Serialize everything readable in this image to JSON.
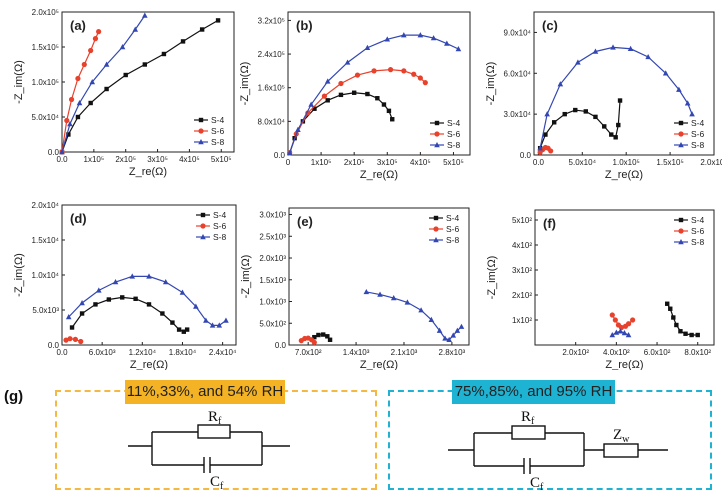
{
  "figure": {
    "colors": {
      "S-4": "#111111",
      "S-6": "#e8412c",
      "S-8": "#3347b3"
    },
    "markers": {
      "S-4": "square",
      "S-6": "circle",
      "S-8": "triangle"
    }
  },
  "chart_data": [
    {
      "panel": "(a)",
      "type": "scatter",
      "xlabel": "Z_re(Ω)",
      "ylabel": "-Z_im(Ω)",
      "xlim": [
        0,
        540000.0
      ],
      "ylim": [
        0,
        200000.0
      ],
      "xticks": [
        0,
        100000,
        200000,
        300000,
        400000,
        500000
      ],
      "xtick_labels": [
        "0.0",
        "1x10⁵",
        "2x10⁵",
        "3x10⁵",
        "4x10⁵",
        "5x10⁵"
      ],
      "yticks": [
        0,
        50000,
        100000,
        150000,
        200000
      ],
      "ytick_labels": [
        "0.0",
        "5.0x10⁴",
        "1.0x10⁵",
        "1.5x10⁵",
        "2.0x10⁵"
      ],
      "legend": [
        "S-4",
        "S-6",
        "S-8"
      ],
      "series": [
        {
          "name": "S-4",
          "x": [
            0,
            20000,
            50000,
            90000,
            140000,
            200000,
            260000,
            320000,
            380000,
            440000,
            490000
          ],
          "y": [
            0,
            25000,
            50000,
            70000,
            90000,
            110000,
            125000,
            140000,
            158000,
            175000,
            188000
          ]
        },
        {
          "name": "S-6",
          "x": [
            0,
            15000,
            30000,
            50000,
            70000,
            90000,
            105000,
            115000
          ],
          "y": [
            0,
            45000,
            75000,
            105000,
            125000,
            145000,
            162000,
            172000
          ]
        },
        {
          "name": "S-8",
          "x": [
            0,
            25000,
            55000,
            95000,
            140000,
            190000,
            230000,
            260000
          ],
          "y": [
            0,
            40000,
            70000,
            100000,
            125000,
            150000,
            175000,
            195000
          ]
        }
      ]
    },
    {
      "panel": "(b)",
      "type": "scatter",
      "xlabel": "Z_re(Ω)",
      "ylabel": "-Z_im(Ω)",
      "xlim": [
        0,
        550000.0
      ],
      "ylim": [
        0,
        340000.0
      ],
      "xticks": [
        0,
        100000,
        200000,
        300000,
        400000,
        500000
      ],
      "xtick_labels": [
        "0",
        "1x10⁵",
        "2x10⁵",
        "3x10⁵",
        "4x10⁵",
        "5x10⁵"
      ],
      "yticks": [
        0,
        80000,
        160000,
        240000,
        320000
      ],
      "ytick_labels": [
        "0.0",
        "8.0x10⁴",
        "1.6x10⁵",
        "2.4x10⁵",
        "3.2x10⁵"
      ],
      "legend": [
        "S-4",
        "S-6",
        "S-8"
      ],
      "series": [
        {
          "name": "S-4",
          "x": [
            5000,
            20000,
            45000,
            80000,
            120000,
            160000,
            200000,
            240000,
            270000,
            290000,
            305000,
            315000
          ],
          "y": [
            5000,
            40000,
            80000,
            110000,
            130000,
            143000,
            148000,
            145000,
            135000,
            120000,
            105000,
            85000
          ]
        },
        {
          "name": "S-6",
          "x": [
            5000,
            25000,
            60000,
            110000,
            160000,
            210000,
            260000,
            310000,
            350000,
            380000,
            400000,
            415000
          ],
          "y": [
            5000,
            50000,
            100000,
            140000,
            170000,
            190000,
            200000,
            203000,
            200000,
            192000,
            183000,
            172000
          ]
        },
        {
          "name": "S-8",
          "x": [
            5000,
            30000,
            70000,
            120000,
            180000,
            240000,
            300000,
            350000,
            400000,
            440000,
            480000,
            515000
          ],
          "y": [
            5000,
            60000,
            120000,
            175000,
            220000,
            255000,
            275000,
            285000,
            285000,
            278000,
            265000,
            252000
          ]
        }
      ]
    },
    {
      "panel": "(c)",
      "type": "scatter",
      "xlabel": "Z_re(Ω)",
      "ylabel": "-Z_im(Ω)",
      "xlim": [
        -5000,
        200000.0
      ],
      "ylim": [
        0,
        105000.0
      ],
      "xticks": [
        0,
        50000,
        100000,
        150000,
        200000
      ],
      "xtick_labels": [
        "0.0",
        "5.0x10⁴",
        "1.0x10⁵",
        "1.5x10⁵",
        "2.0x10⁵"
      ],
      "yticks": [
        0,
        30000,
        60000,
        90000
      ],
      "ytick_labels": [
        "0.0",
        "3.0x10⁴",
        "6.0x10⁴",
        "9.0x10⁴"
      ],
      "legend": [
        "S-4",
        "S-6",
        "S-8"
      ],
      "series": [
        {
          "name": "S-4",
          "x": [
            2000,
            8000,
            18000,
            30000,
            42000,
            54000,
            65000,
            75000,
            83000,
            88000,
            91000,
            93000
          ],
          "y": [
            5000,
            15000,
            24000,
            30000,
            33000,
            32000,
            28000,
            21000,
            15000,
            13000,
            22000,
            40000
          ]
        },
        {
          "name": "S-6",
          "x": [
            2000,
            5000,
            8000,
            11000,
            14000
          ],
          "y": [
            2000,
            4000,
            5500,
            5000,
            3000
          ]
        },
        {
          "name": "S-8",
          "x": [
            2000,
            10000,
            25000,
            45000,
            65000,
            85000,
            105000,
            125000,
            145000,
            160000,
            170000,
            175000
          ],
          "y": [
            5000,
            30000,
            52000,
            68000,
            76000,
            79000,
            78000,
            72000,
            60000,
            48000,
            38000,
            30000
          ]
        }
      ]
    },
    {
      "panel": "(d)",
      "type": "scatter",
      "xlabel": "Z_re(Ω)",
      "ylabel": "-Z_im(Ω)",
      "xlim": [
        0,
        26000
      ],
      "ylim": [
        0,
        20000
      ],
      "xticks": [
        0,
        6000,
        12000,
        18000,
        24000
      ],
      "xtick_labels": [
        "0.0",
        "6.0x10³",
        "1.2x10⁴",
        "1.8x10⁴",
        "2.4x10⁴"
      ],
      "yticks": [
        0,
        5000,
        10000,
        15000,
        20000
      ],
      "ytick_labels": [
        "0.0",
        "5.0x10³",
        "1.0x10⁴",
        "1.5x10⁴",
        "2.0x10⁴"
      ],
      "legend": [
        "S-4",
        "S-6",
        "S-8"
      ],
      "series": [
        {
          "name": "S-4",
          "x": [
            1500,
            3000,
            5000,
            7000,
            9000,
            11000,
            13000,
            15000,
            16500,
            17500,
            18200,
            18700
          ],
          "y": [
            2500,
            4500,
            5800,
            6500,
            6800,
            6600,
            5800,
            4500,
            3200,
            2200,
            1900,
            2200
          ]
        },
        {
          "name": "S-6",
          "x": [
            600,
            1200,
            2000,
            2800
          ],
          "y": [
            700,
            900,
            800,
            500
          ]
        },
        {
          "name": "S-8",
          "x": [
            1000,
            3000,
            5500,
            8000,
            10500,
            13000,
            15500,
            18000,
            20000,
            21500,
            22500,
            23500,
            24500
          ],
          "y": [
            4000,
            6000,
            7800,
            9000,
            9800,
            9800,
            9000,
            7500,
            5500,
            3500,
            2800,
            2800,
            3500
          ]
        }
      ]
    },
    {
      "panel": "(e)",
      "type": "scatter",
      "xlabel": "Z_re(Ω)",
      "ylabel": "-Z_im(Ω)",
      "xlim": [
        420,
        3050
      ],
      "ylim": [
        0,
        3150
      ],
      "xticks": [
        700,
        1400,
        2100,
        2800
      ],
      "xtick_labels": [
        "7.0x10²",
        "1.4x10³",
        "2.1x10³",
        "2.8x10³"
      ],
      "yticks": [
        0,
        500,
        1000,
        1500,
        2000,
        2500,
        3000
      ],
      "ytick_labels": [
        "0.0",
        "5.0x10²",
        "1.0x10³",
        "1.5x10³",
        "2.0x10³",
        "2.5x10³",
        "3.0x10³"
      ],
      "legend": [
        "S-4",
        "S-6",
        "S-8"
      ],
      "series": [
        {
          "name": "S-4",
          "x": [
            790,
            850,
            920,
            980,
            1020
          ],
          "y": [
            180,
            230,
            240,
            200,
            120
          ]
        },
        {
          "name": "S-6",
          "x": [
            600,
            650,
            700,
            750,
            790
          ],
          "y": [
            100,
            150,
            160,
            120,
            60
          ]
        },
        {
          "name": "S-8",
          "x": [
            1550,
            1750,
            1950,
            2150,
            2350,
            2500,
            2620,
            2700,
            2760,
            2820,
            2880,
            2940
          ],
          "y": [
            1220,
            1160,
            1080,
            980,
            800,
            580,
            330,
            150,
            120,
            220,
            330,
            420
          ]
        }
      ]
    },
    {
      "panel": "(f)",
      "type": "scatter",
      "xlabel": "Z_re(Ω)",
      "ylabel": "-Z_im(Ω)",
      "xlim": [
        0,
        880
      ],
      "ylim": [
        0,
        540
      ],
      "xticks": [
        200,
        400,
        600,
        800
      ],
      "xtick_labels": [
        "2.0x10²",
        "4.0x10²",
        "6.0x10²",
        "8.0x10²"
      ],
      "yticks": [
        100,
        200,
        300,
        400,
        500
      ],
      "ytick_labels": [
        "1x10²",
        "2x10²",
        "3x10²",
        "4x10²",
        "5x10²"
      ],
      "legend": [
        "S-4",
        "S-6",
        "S-8"
      ],
      "series": [
        {
          "name": "S-4",
          "x": [
            650,
            665,
            680,
            695,
            715,
            740,
            770,
            800
          ],
          "y": [
            165,
            145,
            110,
            80,
            55,
            45,
            40,
            40
          ]
        },
        {
          "name": "S-6",
          "x": [
            380,
            395,
            410,
            425,
            445,
            460,
            480
          ],
          "y": [
            120,
            100,
            80,
            70,
            75,
            85,
            100
          ]
        },
        {
          "name": "S-8",
          "x": [
            380,
            400,
            420,
            440,
            460
          ],
          "y": [
            40,
            50,
            55,
            48,
            40
          ]
        }
      ]
    }
  ],
  "circuits": {
    "label": "(g)",
    "left": {
      "title": "11%,33%, and 54% RH",
      "resistor": "R",
      "resistor_sub": "f",
      "capacitor": "C",
      "capacitor_sub": "f"
    },
    "right": {
      "title": "75%,85%, and 95% RH",
      "resistor": "R",
      "resistor_sub": "f",
      "capacitor": "C",
      "capacitor_sub": "f",
      "warburg": "Z",
      "warburg_sub": "w"
    },
    "colors": {
      "left_border": "#f5b942",
      "left_badge": "#f4b324",
      "right_border": "#1fb3d3",
      "right_badge": "#1fb3d3"
    }
  }
}
